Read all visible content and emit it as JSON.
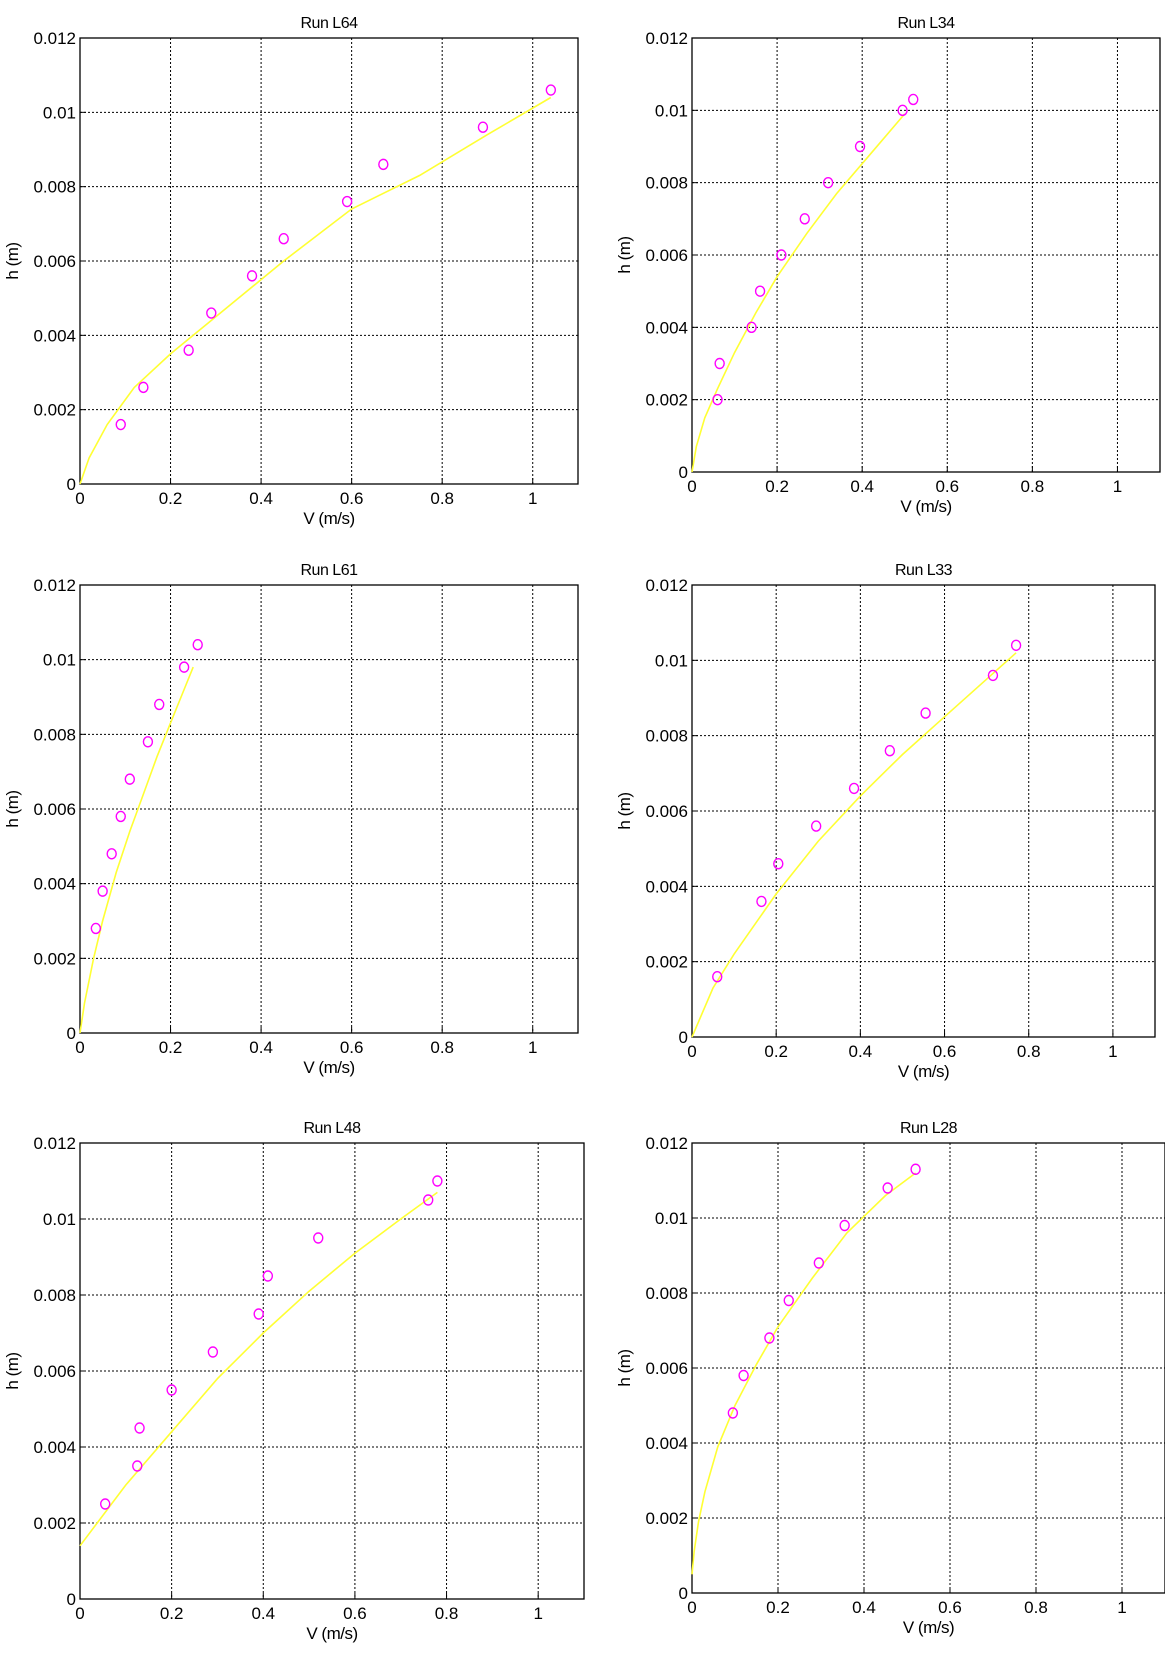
{
  "chart_data": [
    {
      "type": "scatter",
      "title": "Run L64",
      "xlabel": "V (m/s)",
      "ylabel": "h (m)",
      "xlim": [
        0,
        1.1
      ],
      "ylim": [
        0,
        0.012
      ],
      "xticks": [
        "0",
        "0.2",
        "0.4",
        "0.6",
        "0.8",
        "1"
      ],
      "yticks": [
        "0",
        "0.002",
        "0.004",
        "0.006",
        "0.008",
        "0.01",
        "0.012"
      ],
      "grid": true,
      "colors": {
        "points": "#ff00ff",
        "fit": "#ffff33"
      },
      "series": [
        {
          "marker": "circle",
          "x": [
            0.09,
            0.14,
            0.24,
            0.29,
            0.38,
            0.45,
            0.59,
            0.67,
            0.89,
            1.04
          ],
          "y": [
            0.0016,
            0.0026,
            0.0036,
            0.0046,
            0.0056,
            0.0066,
            0.0076,
            0.0086,
            0.0096,
            0.0106
          ]
        },
        {
          "style": "line",
          "x": [
            0.0,
            0.02,
            0.06,
            0.12,
            0.2,
            0.3,
            0.45,
            0.6,
            0.75,
            0.9,
            1.04
          ],
          "y": [
            0.0,
            0.0007,
            0.0016,
            0.0026,
            0.0035,
            0.0045,
            0.006,
            0.0074,
            0.0083,
            0.0094,
            0.0104
          ]
        }
      ]
    },
    {
      "type": "scatter",
      "title": "Run L34",
      "xlabel": "V (m/s)",
      "ylabel": "h (m)",
      "xlim": [
        0,
        1.1
      ],
      "ylim": [
        0,
        0.012
      ],
      "xticks": [
        "0",
        "0.2",
        "0.4",
        "0.6",
        "0.8",
        "1"
      ],
      "yticks": [
        "0",
        "0.002",
        "0.004",
        "0.006",
        "0.008",
        "0.01",
        "0.012"
      ],
      "grid": true,
      "colors": {
        "points": "#ff00ff",
        "fit": "#ffff33"
      },
      "series": [
        {
          "marker": "circle",
          "x": [
            0.06,
            0.065,
            0.14,
            0.16,
            0.21,
            0.265,
            0.32,
            0.395,
            0.495,
            0.52
          ],
          "y": [
            0.002,
            0.003,
            0.004,
            0.005,
            0.006,
            0.007,
            0.008,
            0.009,
            0.01,
            0.0103
          ]
        },
        {
          "style": "line",
          "x": [
            0.0,
            0.01,
            0.03,
            0.06,
            0.1,
            0.15,
            0.2,
            0.27,
            0.34,
            0.42,
            0.5
          ],
          "y": [
            0.0,
            0.0007,
            0.0015,
            0.0023,
            0.0033,
            0.0044,
            0.0054,
            0.0066,
            0.0077,
            0.0088,
            0.0099
          ]
        }
      ]
    },
    {
      "type": "scatter",
      "title": "Run L61",
      "xlabel": "V (m/s)",
      "ylabel": "h (m)",
      "xlim": [
        0,
        1.1
      ],
      "ylim": [
        0,
        0.012
      ],
      "xticks": [
        "0",
        "0.2",
        "0.4",
        "0.6",
        "0.8",
        "1"
      ],
      "yticks": [
        "0",
        "0.002",
        "0.004",
        "0.006",
        "0.008",
        "0.01",
        "0.012"
      ],
      "grid": true,
      "colors": {
        "points": "#ff00ff",
        "fit": "#ffff33"
      },
      "series": [
        {
          "marker": "circle",
          "x": [
            0.035,
            0.05,
            0.07,
            0.09,
            0.11,
            0.15,
            0.175,
            0.23,
            0.26
          ],
          "y": [
            0.0028,
            0.0038,
            0.0048,
            0.0058,
            0.0068,
            0.0078,
            0.0088,
            0.0098,
            0.0104
          ]
        },
        {
          "style": "line",
          "x": [
            0.0,
            0.01,
            0.03,
            0.05,
            0.08,
            0.11,
            0.14,
            0.17,
            0.2,
            0.23,
            0.25
          ],
          "y": [
            0.0,
            0.0008,
            0.002,
            0.003,
            0.0043,
            0.0054,
            0.0064,
            0.0074,
            0.0083,
            0.0092,
            0.0098
          ]
        }
      ]
    },
    {
      "type": "scatter",
      "title": "Run L33",
      "xlabel": "V (m/s)",
      "ylabel": "h (m)",
      "xlim": [
        0,
        1.1
      ],
      "ylim": [
        0,
        0.012
      ],
      "xticks": [
        "0",
        "0.2",
        "0.4",
        "0.6",
        "0.8",
        "1"
      ],
      "yticks": [
        "0",
        "0.002",
        "0.004",
        "0.006",
        "0.008",
        "0.01",
        "0.012"
      ],
      "grid": true,
      "colors": {
        "points": "#ff00ff",
        "fit": "#ffff33"
      },
      "series": [
        {
          "marker": "circle",
          "x": [
            0.06,
            0.165,
            0.205,
            0.295,
            0.385,
            0.47,
            0.555,
            0.715,
            0.77
          ],
          "y": [
            0.0016,
            0.0036,
            0.0046,
            0.0056,
            0.0066,
            0.0076,
            0.0086,
            0.0096,
            0.0104
          ]
        },
        {
          "style": "line",
          "x": [
            0.0,
            0.05,
            0.1,
            0.2,
            0.3,
            0.4,
            0.5,
            0.6,
            0.7,
            0.77
          ],
          "y": [
            0.0,
            0.0013,
            0.0022,
            0.0038,
            0.0052,
            0.0064,
            0.0075,
            0.0085,
            0.0095,
            0.0102
          ]
        }
      ]
    },
    {
      "type": "scatter",
      "title": "Run L48",
      "xlabel": "V (m/s)",
      "ylabel": "h (m)",
      "xlim": [
        0,
        1.1
      ],
      "ylim": [
        0,
        0.012
      ],
      "xticks": [
        "0",
        "0.2",
        "0.4",
        "0.6",
        "0.8",
        "1"
      ],
      "yticks": [
        "0",
        "0.002",
        "0.004",
        "0.006",
        "0.008",
        "0.01",
        "0.012"
      ],
      "grid": true,
      "colors": {
        "points": "#ff00ff",
        "fit": "#ffff33"
      },
      "series": [
        {
          "marker": "circle",
          "x": [
            0.055,
            0.125,
            0.13,
            0.2,
            0.29,
            0.39,
            0.41,
            0.52,
            0.76,
            0.78
          ],
          "y": [
            0.0025,
            0.0035,
            0.0045,
            0.0055,
            0.0065,
            0.0075,
            0.0085,
            0.0095,
            0.0105,
            0.011
          ]
        },
        {
          "style": "line",
          "x": [
            0.0,
            0.1,
            0.2,
            0.3,
            0.4,
            0.5,
            0.6,
            0.7,
            0.78
          ],
          "y": [
            0.0014,
            0.003,
            0.0044,
            0.0058,
            0.007,
            0.0081,
            0.0091,
            0.01,
            0.0107
          ]
        }
      ]
    },
    {
      "type": "scatter",
      "title": "Run L28",
      "xlabel": "V (m/s)",
      "ylabel": "h (m)",
      "xlim": [
        0,
        1.1
      ],
      "ylim": [
        0,
        0.012
      ],
      "xticks": [
        "0",
        "0.2",
        "0.4",
        "0.6",
        "0.8",
        "1"
      ],
      "yticks": [
        "0",
        "0.002",
        "0.004",
        "0.006",
        "0.008",
        "0.01",
        "0.012"
      ],
      "grid": true,
      "colors": {
        "points": "#ff00ff",
        "fit": "#ffff33"
      },
      "series": [
        {
          "marker": "circle",
          "x": [
            0.095,
            0.12,
            0.18,
            0.225,
            0.295,
            0.355,
            0.455,
            0.52
          ],
          "y": [
            0.0048,
            0.0058,
            0.0068,
            0.0078,
            0.0088,
            0.0098,
            0.0108,
            0.0113
          ]
        },
        {
          "style": "line",
          "x": [
            0.0,
            0.005,
            0.015,
            0.03,
            0.06,
            0.1,
            0.15,
            0.2,
            0.28,
            0.36,
            0.45,
            0.52
          ],
          "y": [
            0.0005,
            0.0011,
            0.0019,
            0.0027,
            0.0039,
            0.005,
            0.0061,
            0.0071,
            0.0084,
            0.0096,
            0.0106,
            0.0112
          ]
        }
      ]
    }
  ]
}
